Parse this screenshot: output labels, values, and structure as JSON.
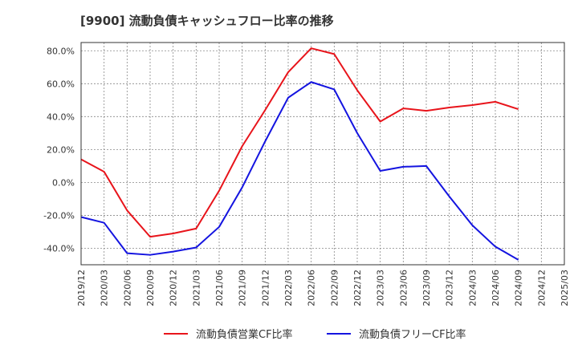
{
  "chart_data": {
    "type": "line",
    "title": "[9900]  流動負債キャッシュフロー比率の推移",
    "xlabel": "",
    "ylabel": "",
    "x": [
      "2019/12",
      "2020/03",
      "2020/06",
      "2020/09",
      "2020/12",
      "2021/03",
      "2021/06",
      "2021/09",
      "2021/12",
      "2022/03",
      "2022/06",
      "2022/09",
      "2022/12",
      "2023/03",
      "2023/06",
      "2023/09",
      "2023/12",
      "2024/03",
      "2024/06",
      "2024/09",
      "2024/12",
      "2025/03"
    ],
    "ylim": [
      -50,
      85
    ],
    "yticks": [
      80,
      60,
      40,
      20,
      0,
      -20,
      -40
    ],
    "ytick_labels": [
      "80.0%",
      "60.0%",
      "40.0%",
      "20.0%",
      "0.0%",
      "-20.0%",
      "-40.0%"
    ],
    "grid": true,
    "legend_position": "bottom",
    "series": [
      {
        "name": "流動負債営業CF比率",
        "color": "#e8141b",
        "values": [
          14.0,
          6.5,
          -17.0,
          -33.0,
          -31.0,
          -28.0,
          -5.0,
          22.0,
          44.0,
          67.0,
          81.5,
          78.0,
          56.0,
          37.0,
          45.0,
          43.5,
          45.5,
          47.0,
          49.0,
          44.5,
          null,
          null
        ]
      },
      {
        "name": "流動負債フリーCF比率",
        "color": "#1414e0",
        "values": [
          -21.0,
          -24.5,
          -43.0,
          -44.0,
          -42.0,
          -39.5,
          -27.0,
          -3.0,
          25.0,
          51.5,
          61.0,
          56.5,
          30.0,
          7.0,
          9.5,
          10.0,
          -8.5,
          -26.0,
          -39.0,
          -47.0,
          null,
          null
        ]
      }
    ]
  }
}
